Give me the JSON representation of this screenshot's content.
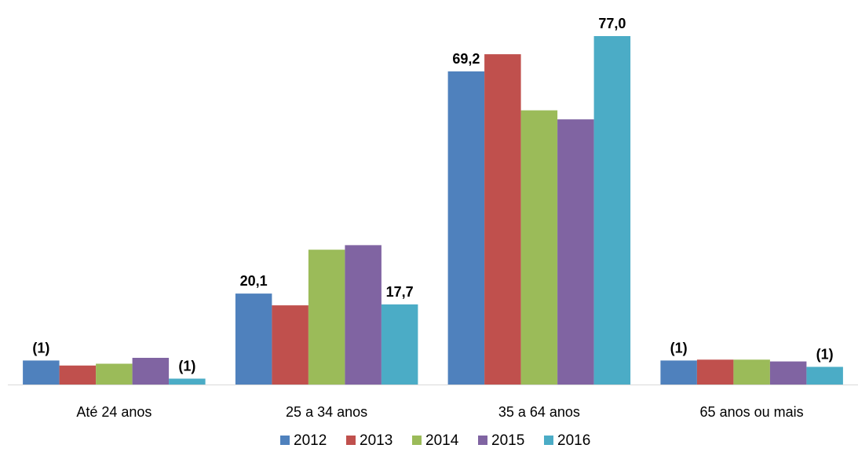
{
  "chart_data": {
    "type": "bar",
    "categories": [
      "Até 24 anos",
      "25 a 34 anos",
      "35 a 64 anos",
      "65 anos ou mais"
    ],
    "series": [
      {
        "name": "2012",
        "color": "#4F81BD",
        "values": [
          5.3,
          20.1,
          69.2,
          5.3
        ]
      },
      {
        "name": "2013",
        "color": "#C0504D",
        "values": [
          4.2,
          17.5,
          73.0,
          5.5
        ]
      },
      {
        "name": "2014",
        "color": "#9BBB59",
        "values": [
          4.6,
          29.8,
          60.6,
          5.5
        ]
      },
      {
        "name": "2015",
        "color": "#8064A2",
        "values": [
          5.9,
          30.8,
          58.6,
          5.1
        ]
      },
      {
        "name": "2016",
        "color": "#4BACC6",
        "values": [
          1.3,
          17.7,
          77.0,
          3.9
        ]
      }
    ],
    "data_labels": [
      {
        "category": 0,
        "series": 0,
        "text": "(1)"
      },
      {
        "category": 0,
        "series": 4,
        "text": "(1)"
      },
      {
        "category": 1,
        "series": 0,
        "text": "20,1"
      },
      {
        "category": 1,
        "series": 4,
        "text": "17,7"
      },
      {
        "category": 2,
        "series": 0,
        "text": "69,2"
      },
      {
        "category": 2,
        "series": 4,
        "text": "77,0"
      },
      {
        "category": 3,
        "series": 0,
        "text": "(1)"
      },
      {
        "category": 3,
        "series": 4,
        "text": "(1)"
      }
    ],
    "ylim": [
      0,
      77.0
    ],
    "grid": false,
    "legend_position": "bottom"
  }
}
